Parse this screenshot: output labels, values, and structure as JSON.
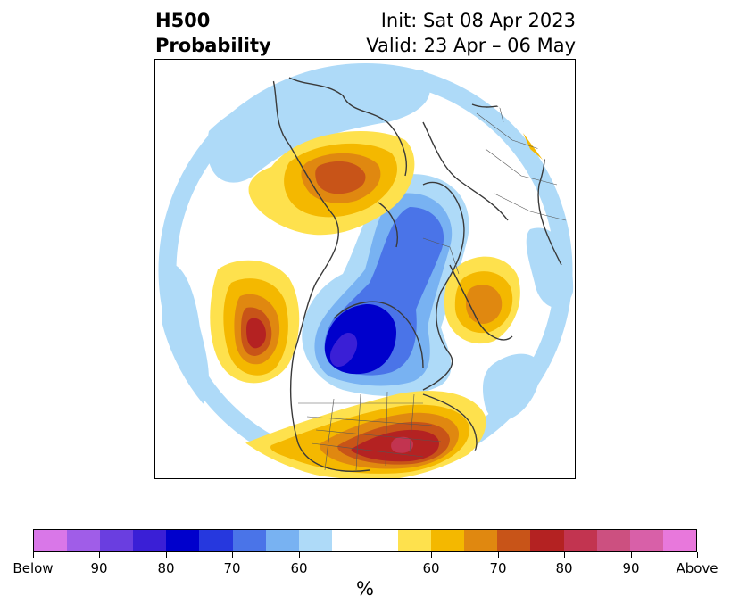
{
  "title": {
    "left_line1": "H500",
    "left_line2": "Probability",
    "right_line1": "Init: Sat 08 Apr 2023",
    "right_line2": "Valid: 23 Apr – 06 May"
  },
  "colorbar": {
    "colors": [
      "#d977e8",
      "#a05de8",
      "#6a3ee0",
      "#3a1fd6",
      "#0000cc",
      "#2638de",
      "#4a74e8",
      "#78b2f2",
      "#aedaf8",
      "#ffffff",
      "#ffffff",
      "#fee14d",
      "#f4b800",
      "#e08810",
      "#c85418",
      "#b42222",
      "#c23450",
      "#cc5080",
      "#d860a8",
      "#e878dc"
    ],
    "tick_labels": [
      "Below",
      "90",
      "80",
      "70",
      "60",
      "60",
      "70",
      "80",
      "90",
      "Above"
    ],
    "units": "%"
  },
  "map": {
    "colors": {
      "light_blue": "#aedaf8",
      "mid_blue": "#78b2f2",
      "blue": "#4a74e8",
      "dark_blue": "#0000cc",
      "deep_blue": "#3a1fd6",
      "yellow": "#fee14d",
      "gold": "#f4b800",
      "orange": "#e08810",
      "dark_orange": "#c85418",
      "red": "#b42222",
      "rose": "#c23450",
      "magenta": "#cc5080"
    }
  }
}
